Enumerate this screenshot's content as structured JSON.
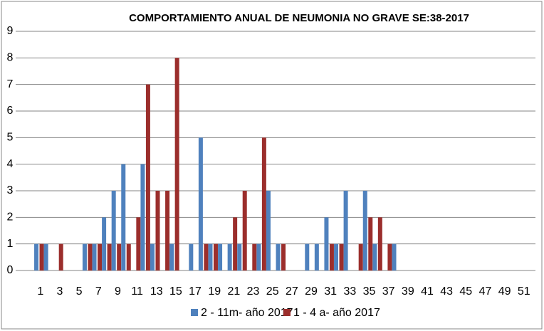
{
  "chart_data": {
    "type": "bar",
    "title": "COMPORTAMIENTO ANUAL DE NEUMONIA NO GRAVE  SE:38-2017",
    "categories": [
      1,
      null,
      3,
      null,
      5,
      null,
      7,
      null,
      9,
      null,
      11,
      null,
      13,
      null,
      15,
      null,
      17,
      null,
      19,
      null,
      21,
      null,
      23,
      null,
      25,
      null,
      27,
      null,
      29,
      null,
      31,
      null,
      33,
      null,
      35,
      null,
      37,
      null,
      39,
      null,
      41,
      null,
      43,
      null,
      45,
      null,
      47,
      null,
      49,
      null,
      51,
      null
    ],
    "series": [
      {
        "name": "2 - 11m- año 2017",
        "color": "#4f81bd",
        "values": [
          1,
          1,
          0,
          0,
          0,
          1,
          1,
          2,
          3,
          4,
          0,
          4,
          1,
          0,
          1,
          0,
          1,
          5,
          1,
          1,
          1,
          1,
          0,
          1,
          3,
          1,
          0,
          0,
          1,
          1,
          2,
          1,
          3,
          0,
          3,
          1,
          0,
          1,
          0,
          0,
          0,
          0,
          0,
          0,
          0,
          0,
          0,
          0,
          0,
          0,
          0,
          0
        ]
      },
      {
        "name": "1 - 4 a- año 2017",
        "color": "#9b2e2c",
        "values": [
          1,
          0,
          1,
          0,
          0,
          1,
          1,
          1,
          1,
          1,
          2,
          7,
          3,
          3,
          8,
          0,
          0,
          1,
          1,
          0,
          2,
          3,
          1,
          5,
          0,
          1,
          0,
          0,
          0,
          0,
          1,
          1,
          0,
          1,
          2,
          2,
          1,
          0,
          0,
          0,
          0,
          0,
          0,
          0,
          0,
          0,
          0,
          0,
          0,
          0,
          0,
          0
        ]
      }
    ],
    "ylim": [
      0,
      9
    ],
    "yticks": [
      0,
      1,
      2,
      3,
      4,
      5,
      6,
      7,
      8,
      9
    ],
    "grid": true,
    "legend": "bottom"
  }
}
